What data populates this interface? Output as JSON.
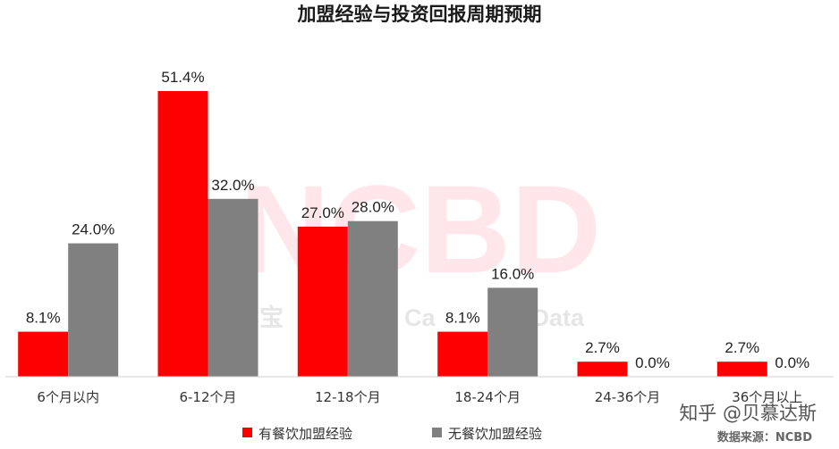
{
  "chart_data": {
    "type": "bar",
    "title": "加盟经验与投资回报周期预期",
    "categories": [
      "6个月以内",
      "6-12个月",
      "12-18个月",
      "18-24个月",
      "24-36个月",
      "36个月以上"
    ],
    "series": [
      {
        "name": "有餐饮加盟经验",
        "color": "#ff0000",
        "values": [
          8.1,
          51.4,
          27.0,
          8.1,
          2.7,
          2.7
        ],
        "labels": [
          "8.1%",
          "51.4%",
          "27.0%",
          "8.1%",
          "2.7%",
          "2.7%"
        ]
      },
      {
        "name": "无餐饮加盟经验",
        "color": "#808080",
        "values": [
          24.0,
          32.0,
          28.0,
          16.0,
          0.0,
          0.0
        ],
        "labels": [
          "24.0%",
          "32.0%",
          "28.0%",
          "16.0%",
          "0.0%",
          "0.0%"
        ]
      }
    ],
    "ylim": [
      0,
      55
    ],
    "grid": false,
    "legend_position": "bottom-center",
    "xlabel": "",
    "ylabel": ""
  },
  "watermarks": {
    "brand": "NCBD",
    "secondary_left": "宝",
    "secondary_right": "Ca         ng Data",
    "platform": "知乎 @贝慕达斯"
  },
  "source_note": "数据来源：NCBD"
}
